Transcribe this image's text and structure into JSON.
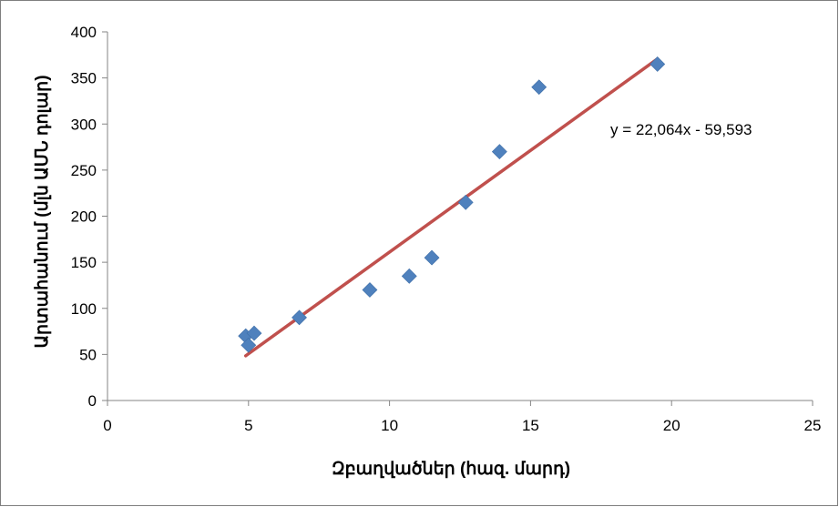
{
  "chart_data": {
    "type": "scatter",
    "title": "",
    "xlabel": "Զբաղվածներ (հազ. մարդ)",
    "ylabel": "Արտահանում (մլն ԱՄՆ դոլար)",
    "xlim": [
      0,
      25
    ],
    "ylim": [
      0,
      400
    ],
    "xticks": [
      "0",
      "5",
      "10",
      "15",
      "20",
      "25"
    ],
    "yticks": [
      "0",
      "50",
      "100",
      "150",
      "200",
      "250",
      "300",
      "350",
      "400"
    ],
    "grid": false,
    "legend": "none",
    "marker_color": "#4f81bd",
    "trendline_color": "#c0504d",
    "points": [
      {
        "x": 4.9,
        "y": 70
      },
      {
        "x": 5.0,
        "y": 60
      },
      {
        "x": 5.2,
        "y": 73
      },
      {
        "x": 6.8,
        "y": 90
      },
      {
        "x": 9.3,
        "y": 120
      },
      {
        "x": 10.7,
        "y": 135
      },
      {
        "x": 11.5,
        "y": 155
      },
      {
        "x": 12.7,
        "y": 215
      },
      {
        "x": 13.9,
        "y": 270
      },
      {
        "x": 15.3,
        "y": 340
      },
      {
        "x": 19.5,
        "y": 365
      }
    ],
    "trendline": {
      "type": "linear",
      "slope": 22.064,
      "intercept": -59.593,
      "x_range": [
        4.9,
        19.5
      ],
      "label": "y = 22,064x - 59,593"
    }
  }
}
